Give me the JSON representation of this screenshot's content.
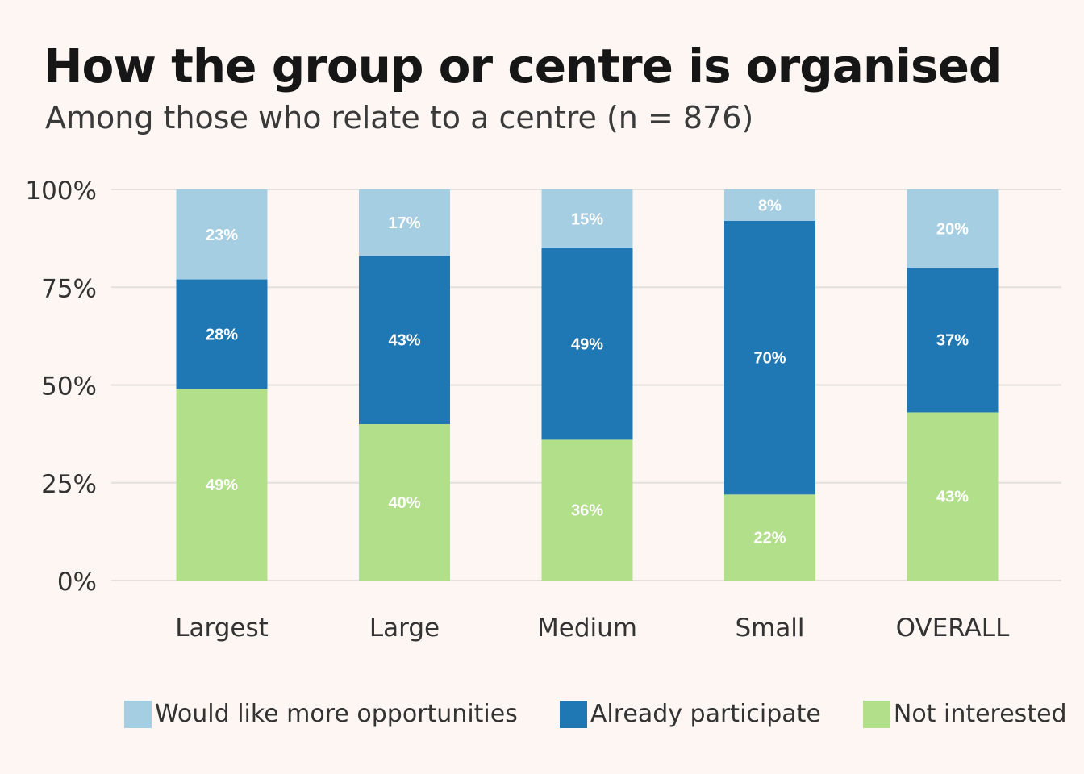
{
  "header": {
    "title": "How the group or centre is organised",
    "subtitle": "Among those who relate to a centre (n = 876)"
  },
  "chart_data": {
    "type": "bar",
    "stacked": true,
    "title": "How the group or centre is organised",
    "subtitle": "Among those who relate to a centre (n = 876)",
    "xlabel": "",
    "ylabel": "",
    "ylim": [
      0,
      100
    ],
    "yticks": [
      0,
      25,
      50,
      75,
      100
    ],
    "ytick_labels": [
      "0%",
      "25%",
      "50%",
      "75%",
      "100%"
    ],
    "grid": true,
    "legend_position": "bottom",
    "categories": [
      "Largest",
      "Large",
      "Medium",
      "Small",
      "OVERALL"
    ],
    "series": [
      {
        "name": "Not interested",
        "color": "#b2df8a",
        "values": [
          49,
          40,
          36,
          22,
          43
        ],
        "labels": [
          "49%",
          "40%",
          "36%",
          "22%",
          "43%"
        ]
      },
      {
        "name": "Already participate",
        "color": "#1f78b4",
        "values": [
          28,
          43,
          49,
          70,
          37
        ],
        "labels": [
          "28%",
          "43%",
          "49%",
          "70%",
          "37%"
        ]
      },
      {
        "name": "Would like more opportunities",
        "color": "#a6cee3",
        "values": [
          23,
          17,
          15,
          8,
          20
        ],
        "labels": [
          "23%",
          "17%",
          "15%",
          "8%",
          "20%"
        ]
      }
    ],
    "legend_order": [
      "Would like more opportunities",
      "Already participate",
      "Not interested"
    ]
  },
  "colors": {
    "background": "#fdf6f2",
    "gridline": "#e3e0de",
    "bar_label": "#ffffff"
  }
}
